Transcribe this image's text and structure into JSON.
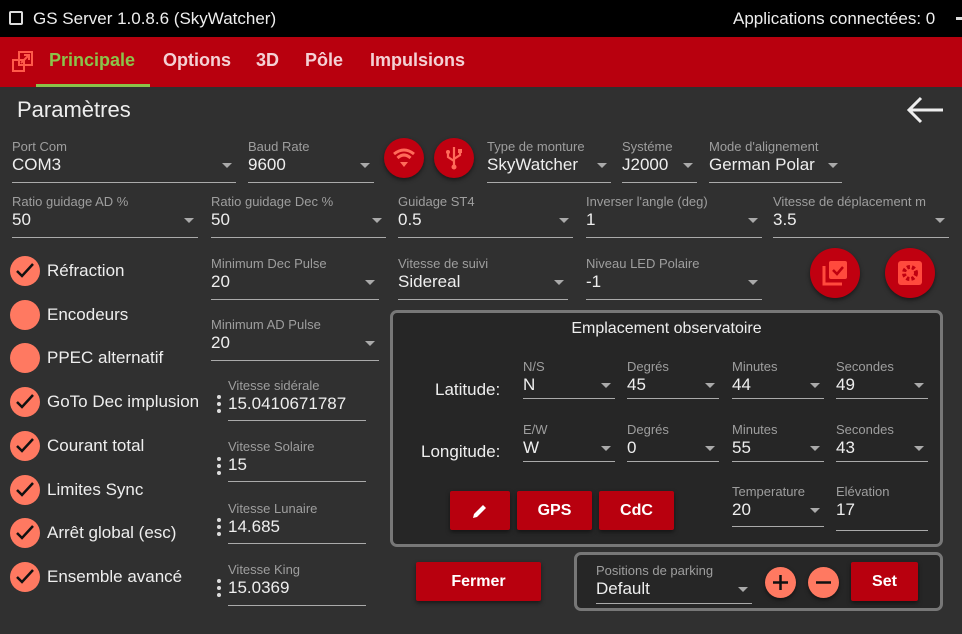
{
  "window": {
    "title": "GS Server 1.0.8.6  (SkyWatcher)",
    "connected": "Applications connectées:  0"
  },
  "tabs": [
    "Principale",
    "Options",
    "3D",
    "Pôle",
    "Impulsions"
  ],
  "heading": "Paramètres",
  "fields": {
    "port": {
      "label": "Port Com",
      "value": "COM3"
    },
    "baud": {
      "label": "Baud Rate",
      "value": "9600"
    },
    "mount": {
      "label": "Type de monture",
      "value": "SkyWatcher"
    },
    "system": {
      "label": "Systéme",
      "value": "J2000"
    },
    "align": {
      "label": "Mode d'alignement",
      "value": "German Polar"
    },
    "ratio_ad": {
      "label": "Ratio guidage AD %",
      "value": "50"
    },
    "ratio_dec": {
      "label": "Ratio guidage Dec %",
      "value": "50"
    },
    "st4": {
      "label": "Guidage ST4",
      "value": "0.5"
    },
    "invert": {
      "label": "Inverser l'angle (deg)",
      "value": "1"
    },
    "speed": {
      "label": "Vitesse de déplacement m",
      "value": "3.5"
    },
    "min_dec": {
      "label": "Minimum Dec Pulse",
      "value": "20"
    },
    "tracking": {
      "label": "Vitesse de suivi",
      "value": "Sidereal"
    },
    "led": {
      "label": "Niveau LED Polaire",
      "value": "-1"
    },
    "min_ad": {
      "label": "Minimum AD Pulse",
      "value": "20"
    },
    "sidereal": {
      "label": "Vitesse sidérale",
      "value": "15.0410671787"
    },
    "solar": {
      "label": "Vitesse Solaire",
      "value": "15"
    },
    "lunar": {
      "label": "Vitesse Lunaire",
      "value": "14.685"
    },
    "king": {
      "label": "Vitesse King",
      "value": "15.0369"
    }
  },
  "checks": [
    {
      "label": "Réfraction",
      "checked": true
    },
    {
      "label": "Encodeurs",
      "checked": false
    },
    {
      "label": "PPEC alternatif",
      "checked": false
    },
    {
      "label": "GoTo Dec implusion",
      "checked": true
    },
    {
      "label": "Courant total",
      "checked": true
    },
    {
      "label": "Limites Sync",
      "checked": true
    },
    {
      "label": "Arrêt global (esc)",
      "checked": true
    },
    {
      "label": "Ensemble avancé",
      "checked": true
    }
  ],
  "observatory": {
    "title": "Emplacement observatoire",
    "lat_label": "Latitude:",
    "lon_label": "Longitude:",
    "lat": {
      "ns_label": "N/S",
      "ns": "N",
      "deg_label": "Degrés",
      "deg": "45",
      "min_label": "Minutes",
      "min": "44",
      "sec_label": "Secondes",
      "sec": "49"
    },
    "lon": {
      "ew_label": "E/W",
      "ew": "W",
      "deg_label": "Degrés",
      "deg": "0",
      "min_label": "Minutes",
      "min": "55",
      "sec_label": "Secondes",
      "sec": "43"
    },
    "gps": "GPS",
    "cdc": "CdC",
    "temp": {
      "label": "Temperature",
      "value": "20"
    },
    "elev": {
      "label": "Elévation",
      "value": "17"
    }
  },
  "close": "Fermer",
  "parking": {
    "label": "Positions de parking",
    "value": "Default",
    "set": "Set"
  },
  "colors": {
    "accent": "#b8000e",
    "active_tab": "#8bc34a",
    "check": "#ff7961"
  }
}
